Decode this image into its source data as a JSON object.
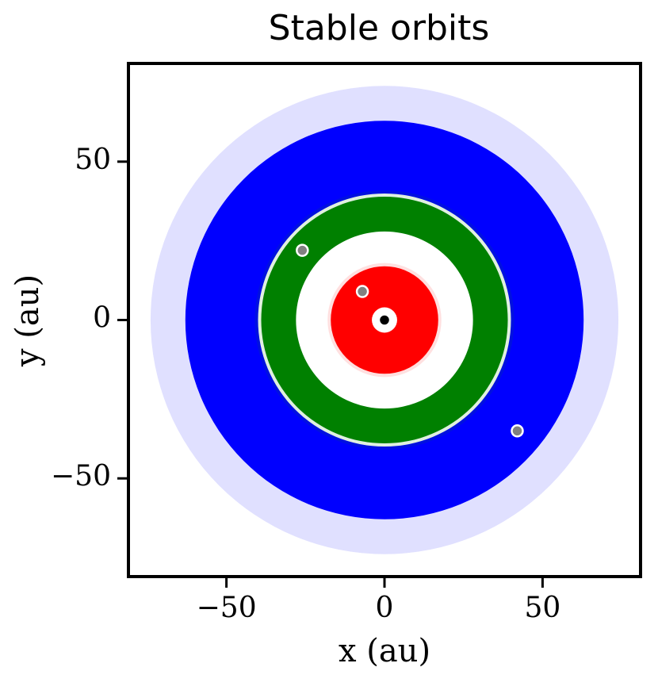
{
  "chart_data": {
    "type": "orbits",
    "title": "Stable orbits",
    "x_label": "x (au)",
    "y_label": "y (au)",
    "xlim": [
      -81,
      81
    ],
    "ylim": [
      -81,
      81
    ],
    "xticks": [
      {
        "value": -50,
        "label": "−50"
      },
      0,
      50
    ],
    "yticks": [
      {
        "value": -50,
        "label": "−50"
      },
      0,
      50
    ],
    "orbit_bands": [
      {
        "color": "#0000ff",
        "r_inner": 40,
        "r_outer": 63,
        "r_max": 74
      },
      {
        "color": "#008000",
        "r_inner": 28,
        "r_outer": 39,
        "r_max": 41
      },
      {
        "color": "#ff0000",
        "r_inner": 4,
        "r_outer": 17,
        "r_max": 18
      }
    ],
    "planets": {
      "color": "#808080",
      "x": [
        -26,
        -7,
        42
      ],
      "y": [
        22,
        9,
        -35
      ]
    },
    "star": {
      "color": "#000000",
      "x": 0,
      "y": 0
    }
  }
}
